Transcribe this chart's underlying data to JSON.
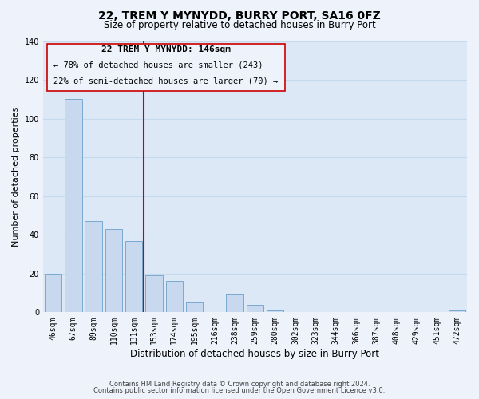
{
  "title": "22, TREM Y MYNYDD, BURRY PORT, SA16 0FZ",
  "subtitle": "Size of property relative to detached houses in Burry Port",
  "xlabel": "Distribution of detached houses by size in Burry Port",
  "ylabel": "Number of detached properties",
  "bar_color": "#c8d8ee",
  "bar_edge_color": "#7aaad0",
  "categories": [
    "46sqm",
    "67sqm",
    "89sqm",
    "110sqm",
    "131sqm",
    "153sqm",
    "174sqm",
    "195sqm",
    "216sqm",
    "238sqm",
    "259sqm",
    "280sqm",
    "302sqm",
    "323sqm",
    "344sqm",
    "366sqm",
    "387sqm",
    "408sqm",
    "429sqm",
    "451sqm",
    "472sqm"
  ],
  "values": [
    20,
    110,
    47,
    43,
    37,
    19,
    16,
    5,
    0,
    9,
    4,
    1,
    0,
    0,
    0,
    0,
    0,
    0,
    0,
    0,
    1
  ],
  "ylim": [
    0,
    140
  ],
  "yticks": [
    0,
    20,
    40,
    60,
    80,
    100,
    120,
    140
  ],
  "vline_x": 5.5,
  "vline_color": "#cc0000",
  "annotation_title": "22 TREM Y MYNYDD: 146sqm",
  "annotation_line1": "← 78% of detached houses are smaller (243)",
  "annotation_line2": "22% of semi-detached houses are larger (70) →",
  "footer_line1": "Contains HM Land Registry data © Crown copyright and database right 2024.",
  "footer_line2": "Contains public sector information licensed under the Open Government Licence v3.0.",
  "background_color": "#edf2fb",
  "plot_bg_color": "#dce8f5",
  "grid_color": "#c5d8ee",
  "title_fontsize": 10,
  "subtitle_fontsize": 8.5,
  "xlabel_fontsize": 8.5,
  "ylabel_fontsize": 8,
  "tick_fontsize": 7,
  "footer_fontsize": 6,
  "annotation_fontsize": 8
}
